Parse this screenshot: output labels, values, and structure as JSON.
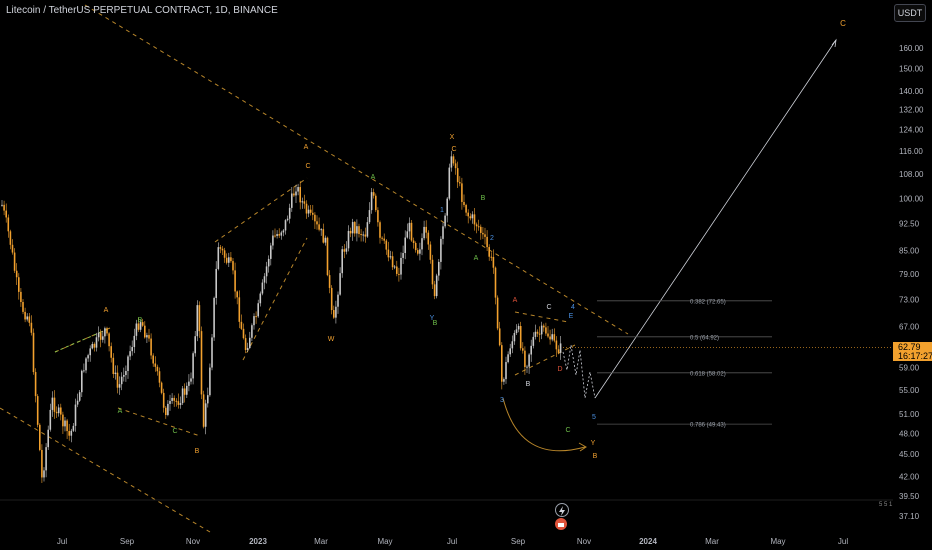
{
  "header": {
    "title": "Litecoin / TetherUS PERPETUAL CONTRACT, 1D, BINANCE",
    "currency_button": "USDT"
  },
  "price_tag": {
    "price": "62.79",
    "countdown": "16:17:27"
  },
  "colors": {
    "background": "#000000",
    "candle": "#f2a12e",
    "candle_alt": "#c9c9c9",
    "orange_label": "#f0a030",
    "blue_label": "#4a90e2",
    "green_label": "#6fbf4a",
    "red_label": "#e0533a",
    "white_label": "#d1d4dc",
    "dashed_trend": "#b8862a",
    "fib_line": "#555555"
  },
  "chart_data": {
    "type": "candlestick",
    "x_tick_labels": [
      "Jul",
      "Sep",
      "Nov",
      "2023",
      "Mar",
      "May",
      "Jul",
      "Sep",
      "Nov",
      "2024",
      "Mar",
      "May",
      "Jul"
    ],
    "y_tick_labels": [
      "160.00",
      "150.00",
      "140.00",
      "132.00",
      "124.00",
      "116.00",
      "108.00",
      "100.00",
      "92.50",
      "85.00",
      "79.00",
      "73.00",
      "67.00",
      "59.00",
      "55.00",
      "51.00",
      "48.00",
      "45.00",
      "42.00",
      "39.50",
      "37.10"
    ],
    "y_scale": "log",
    "last_price": 62.79,
    "fib_levels": [
      {
        "label": "0.382 (72.65)",
        "value": 72.65
      },
      {
        "label": "0.5 (64.92)",
        "value": 64.92
      },
      {
        "label": "0.618 (58.02)",
        "value": 58.02
      },
      {
        "label": "0.786 (49.43)",
        "value": 49.43
      }
    ],
    "wave_labels": [
      {
        "text": "A",
        "color": "orange"
      },
      {
        "text": "B",
        "color": "orange"
      },
      {
        "text": "A",
        "color": "orange"
      },
      {
        "text": "C",
        "color": "orange"
      },
      {
        "text": "X",
        "color": "orange"
      },
      {
        "text": "C",
        "color": "orange"
      },
      {
        "text": "Y",
        "color": "orange"
      },
      {
        "text": "B",
        "color": "orange"
      },
      {
        "text": "A",
        "color": "green"
      },
      {
        "text": "B",
        "color": "green"
      },
      {
        "text": "C",
        "color": "green"
      },
      {
        "text": "A",
        "color": "green"
      },
      {
        "text": "B",
        "color": "green"
      },
      {
        "text": "A",
        "color": "green"
      },
      {
        "text": "B",
        "color": "green"
      },
      {
        "text": "C",
        "color": "green"
      },
      {
        "text": "1",
        "color": "blue"
      },
      {
        "text": "2",
        "color": "blue"
      },
      {
        "text": "3",
        "color": "blue"
      },
      {
        "text": "4",
        "color": "blue"
      },
      {
        "text": "5",
        "color": "blue"
      },
      {
        "text": "Y",
        "color": "blue"
      },
      {
        "text": "W",
        "color": "orange"
      },
      {
        "text": "A",
        "color": "red"
      },
      {
        "text": "B",
        "color": "white"
      },
      {
        "text": "C",
        "color": "white"
      },
      {
        "text": "D",
        "color": "red"
      },
      {
        "text": "E",
        "color": "blue"
      }
    ]
  },
  "footer": {
    "marker": "5 5 1"
  }
}
